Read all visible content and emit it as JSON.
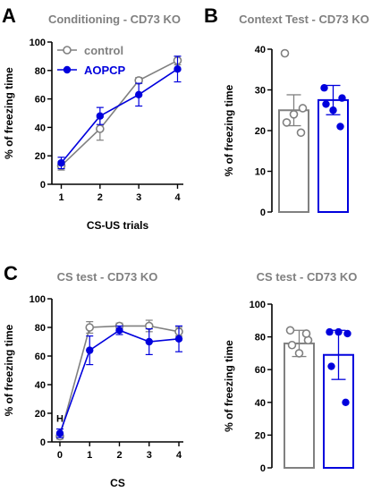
{
  "colors": {
    "control": "#808080",
    "aopcp": "#0000dd",
    "axis": "#000000"
  },
  "panels": [
    {
      "letter": "A"
    },
    {
      "letter": "B"
    },
    {
      "letter": "C"
    }
  ],
  "chart_data": [
    {
      "id": "A",
      "type": "line",
      "title": "Conditioning - CD73 KO",
      "xlabel": "CS-US trials",
      "ylabel": "% of freezing time",
      "x": [
        1,
        2,
        3,
        4
      ],
      "xticks": [
        1,
        2,
        3,
        4
      ],
      "xlim": [
        0.85,
        4.15
      ],
      "ylim": [
        0,
        100
      ],
      "yticks": [
        0,
        20,
        40,
        60,
        80,
        100
      ],
      "grid": false,
      "legend": "top-left",
      "series": [
        {
          "name": "control",
          "key": "control",
          "marker": "open-circle",
          "values": [
            13,
            39,
            73,
            87
          ],
          "err": [
            3,
            8,
            2,
            3
          ]
        },
        {
          "name": "AOPCP",
          "key": "aopcp",
          "marker": "filled-circle",
          "values": [
            15,
            48,
            63,
            81
          ],
          "err": [
            4,
            6,
            8,
            9
          ]
        }
      ]
    },
    {
      "id": "B",
      "type": "bar",
      "title": "Context Test - CD73 KO",
      "ylabel": "% of freezing time",
      "ylim": [
        0,
        40
      ],
      "yticks": [
        0,
        10,
        20,
        30,
        40
      ],
      "grid": false,
      "bars": [
        {
          "key": "control",
          "value": 25,
          "err": 3.8,
          "points": [
            39,
            25.5,
            24,
            22,
            19.5
          ]
        },
        {
          "key": "aopcp",
          "value": 27.5,
          "err": 3.6,
          "points": [
            30.5,
            28,
            25,
            26.5,
            21
          ]
        }
      ]
    },
    {
      "id": "C1",
      "type": "line",
      "title": "CS test - CD73 KO",
      "xlabel": "CS",
      "ylabel": "% of freezing time",
      "x": [
        0,
        1,
        2,
        3,
        4
      ],
      "xticks": [
        0,
        1,
        2,
        3,
        4
      ],
      "xlim": [
        -0.15,
        4.15
      ],
      "ylim": [
        0,
        100
      ],
      "yticks": [
        0,
        20,
        40,
        60,
        80,
        100
      ],
      "grid": false,
      "annotation": {
        "text": "H",
        "x": 0
      },
      "series": [
        {
          "key": "control",
          "marker": "open-circle",
          "values": [
            4,
            80,
            81,
            81,
            77
          ],
          "err": [
            2,
            4,
            2,
            4,
            3
          ]
        },
        {
          "key": "aopcp",
          "marker": "filled-circle",
          "values": [
            6,
            64,
            78,
            70,
            72
          ],
          "err": [
            3,
            10,
            3,
            9,
            9
          ]
        }
      ]
    },
    {
      "id": "C2",
      "type": "bar",
      "title": "CS test - CD73 KO",
      "ylabel": "% of freezing time",
      "ylim": [
        0,
        100
      ],
      "yticks": [
        0,
        20,
        40,
        60,
        80,
        100
      ],
      "grid": false,
      "bars": [
        {
          "key": "control",
          "value": 76,
          "err": 8,
          "points": [
            84,
            78,
            70,
            75,
            82
          ]
        },
        {
          "key": "aopcp",
          "value": 69,
          "err": 15,
          "points": [
            83,
            82,
            83,
            62,
            40
          ]
        }
      ]
    }
  ]
}
